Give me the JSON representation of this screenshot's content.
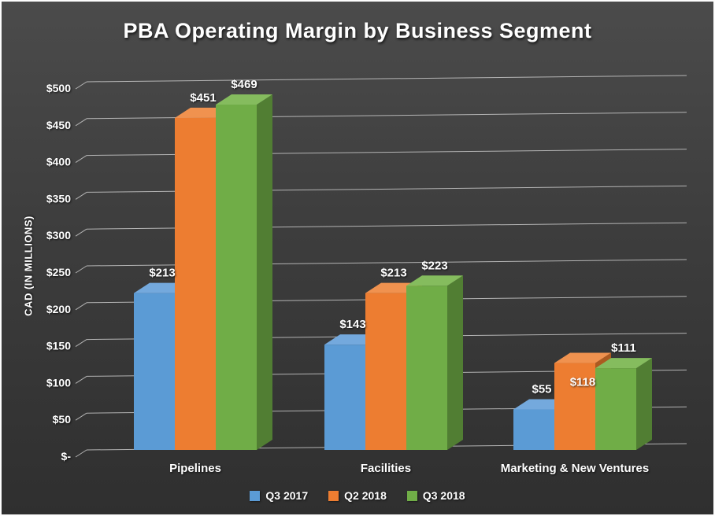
{
  "chart_data": {
    "type": "bar",
    "variant": "3d-column",
    "title": "PBA Operating Margin by Business Segment",
    "ylabel": "CAD (IN MILLIONS)",
    "categories": [
      "Pipelines",
      "Facilities",
      "Marketing & New Ventures"
    ],
    "series": [
      {
        "name": "Q3 2017",
        "values": [
          213,
          143,
          55
        ],
        "color": "#5B9BD5",
        "side_color": "#3E6F9F",
        "top_color": "#74A9DD",
        "label_dy": [
          0,
          0,
          0
        ]
      },
      {
        "name": "Q2 2018",
        "values": [
          451,
          213,
          118
        ],
        "color": "#ED7D31",
        "side_color": "#AC5A20",
        "top_color": "#F0924F",
        "label_dy": [
          0,
          0,
          50
        ]
      },
      {
        "name": "Q3 2018",
        "values": [
          469,
          223,
          111
        ],
        "color": "#70AD47",
        "side_color": "#517E33",
        "top_color": "#85BC5E",
        "label_dy": [
          0,
          0,
          0
        ]
      }
    ],
    "ylim": [
      0,
      500
    ],
    "yticks": [
      0,
      50,
      100,
      150,
      200,
      250,
      300,
      350,
      400,
      450,
      500
    ],
    "ytick_labels": [
      "$-",
      "$50",
      "$100",
      "$150",
      "$200",
      "$250",
      "$300",
      "$350",
      "$400",
      "$450",
      "$500"
    ],
    "data_label_prefix": "$",
    "legend_position": "bottom",
    "gridlines": true,
    "text_color": "#FFFFFF",
    "gridline_color": "#C9C9C9"
  }
}
